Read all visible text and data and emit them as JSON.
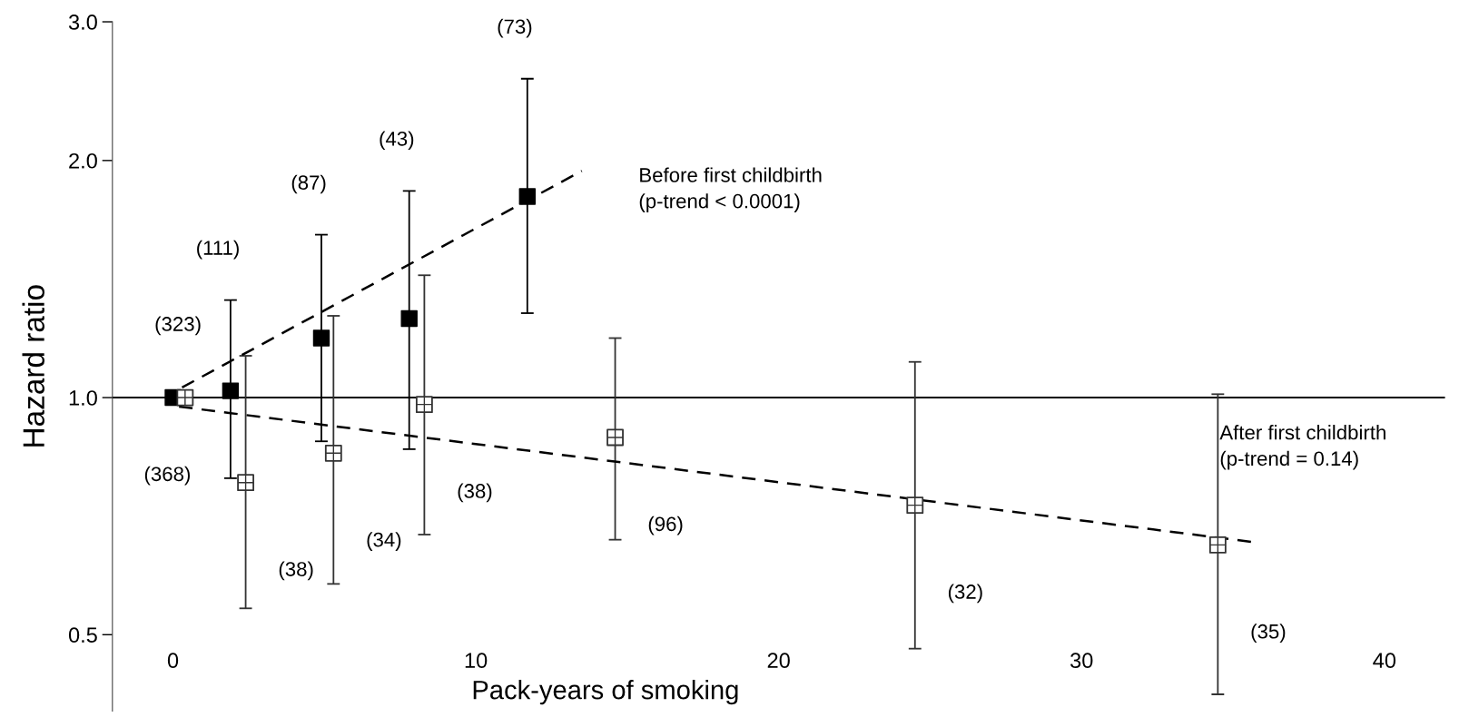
{
  "chart_data": {
    "type": "scatter",
    "xlabel": "Pack-years of smoking",
    "ylabel": "Hazard ratio",
    "log": "y",
    "ylim": [
      0.4,
      3.0
    ],
    "yticks": [
      {
        "value": 0.5,
        "label": "0.5"
      },
      {
        "value": 1.0,
        "label": "1.0"
      },
      {
        "value": 2.0,
        "label": "2.0"
      },
      {
        "value": 3.0,
        "label": "3.0"
      }
    ],
    "xlim": [
      -2,
      42
    ],
    "xticks": [
      0,
      10,
      20,
      30,
      40
    ],
    "grid": false,
    "legend": false,
    "series": [
      {
        "color": "#000000",
        "marker": "square",
        "x": [
          0,
          1.9,
          4.9,
          7.8,
          11.7
        ],
        "values": [
          1.0,
          1.02,
          1.19,
          1.26,
          1.8
        ],
        "errors": [
          null,
          [
            0.79,
            1.33
          ],
          [
            0.88,
            1.61
          ],
          [
            0.86,
            1.83
          ],
          [
            1.28,
            2.54
          ]
        ]
      },
      {
        "color": "#333333",
        "marker": "square",
        "x": [
          0.4,
          2.4,
          5.3,
          8.3,
          14.6,
          24.5,
          34.5
        ],
        "values": [
          1.0,
          0.78,
          0.85,
          0.98,
          0.89,
          0.73,
          0.65
        ],
        "errors": [
          null,
          [
            0.54,
            1.13
          ],
          [
            0.58,
            1.27
          ],
          [
            0.67,
            1.43
          ],
          [
            0.66,
            1.19
          ],
          [
            0.48,
            1.11
          ],
          [
            0.42,
            1.01
          ]
        ]
      },
      {
        "type": "line",
        "color": "#000000",
        "marker": "none",
        "line_style": "dashed",
        "x": [
          0.3,
          13.5
        ],
        "values": [
          1.03,
          1.94
        ]
      },
      {
        "type": "line",
        "color": "#000000",
        "marker": "none",
        "line_style": "dashed",
        "x": [
          0.2,
          35.6
        ],
        "values": [
          0.974,
          0.656
        ]
      }
    ],
    "ref_lines": [
      {
        "axis": "y",
        "value": 1.0,
        "color": "#000000",
        "line_style": "solid"
      }
    ],
    "annotations": [
      "(323)",
      "(111)",
      "(87)",
      "(43)",
      "(73)",
      "(368)",
      "(38)",
      "(34)",
      "(38)",
      "(96)",
      "(32)",
      "(35)",
      "Before first childbirth\n(p-trend < 0.0001)",
      "After first childbirth\n(p-trend = 0.14)"
    ]
  }
}
